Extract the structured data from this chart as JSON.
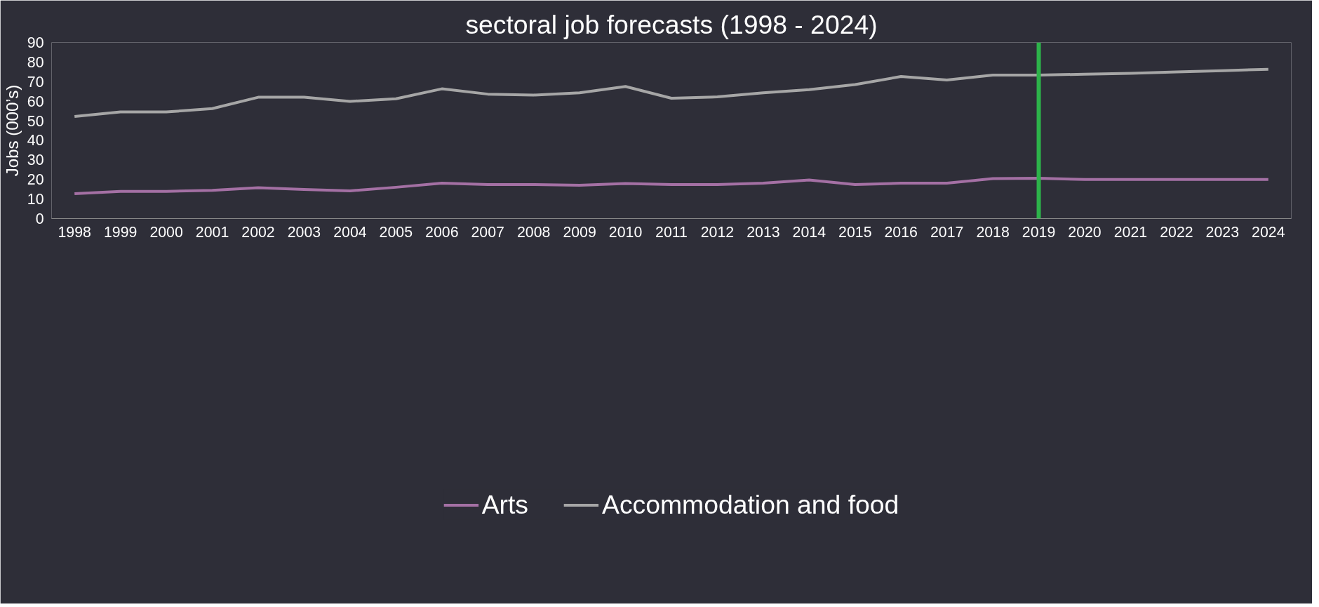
{
  "chart_data": {
    "type": "line",
    "title": "sectoral job forecasts (1998 - 2024)",
    "ylabel": "Jobs (000’s)",
    "categories": [
      "1998",
      "1999",
      "2000",
      "2001",
      "2002",
      "2003",
      "2004",
      "2005",
      "2006",
      "2007",
      "2008",
      "2009",
      "2010",
      "2011",
      "2012",
      "2013",
      "2014",
      "2015",
      "2016",
      "2017",
      "2018",
      "2019",
      "2020",
      "2021",
      "2022",
      "2023",
      "2024"
    ],
    "series": [
      {
        "name": "Arts",
        "color": "#a470a4",
        "values": [
          12.7,
          13.9,
          13.9,
          14.4,
          15.8,
          14.9,
          14.2,
          16.0,
          18.1,
          17.4,
          17.4,
          17.0,
          17.9,
          17.4,
          17.4,
          18.1,
          19.7,
          17.4,
          18.1,
          18.1,
          20.4,
          20.6,
          20.0,
          20.0,
          20.0,
          20.0,
          20.0
        ]
      },
      {
        "name": "Accommodation and food",
        "color": "#a6a6a6",
        "values": [
          52.2,
          54.5,
          54.5,
          56.2,
          62.0,
          62.0,
          59.9,
          61.2,
          66.3,
          63.6,
          63.1,
          64.3,
          67.5,
          61.5,
          62.2,
          64.3,
          65.9,
          68.5,
          72.6,
          70.8,
          73.3,
          73.3,
          73.8,
          74.2,
          74.9,
          75.6,
          76.3
        ]
      }
    ],
    "ylim": [
      0,
      90
    ],
    "yticks": [
      0,
      10,
      20,
      30,
      40,
      50,
      60,
      70,
      80,
      90
    ],
    "grid": false,
    "legend": "bottom",
    "marker": "none",
    "line_style": "solid",
    "ref_lines": [
      {
        "axis": "x",
        "value": "2019",
        "color": "#2db34a"
      }
    ]
  }
}
